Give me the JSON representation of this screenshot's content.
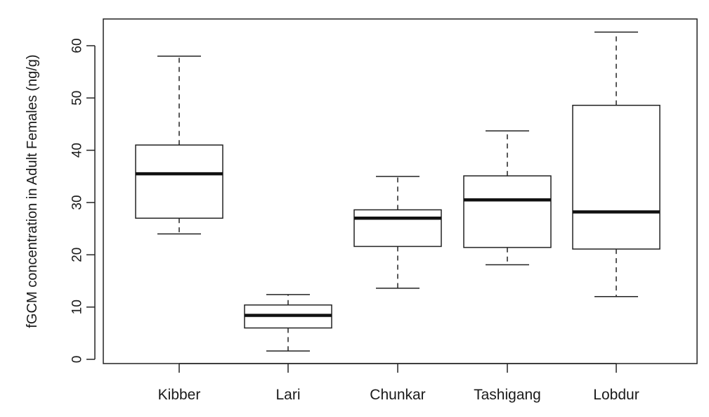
{
  "chart_data": {
    "type": "boxplot",
    "ylabel": "fGCM concentration in Adult Females (ng/g)",
    "xlabel": "",
    "ylim": [
      0,
      65
    ],
    "yticks": [
      0,
      10,
      20,
      30,
      40,
      50,
      60
    ],
    "categories": [
      "Kibber",
      "Lari",
      "Chunkar",
      "Tashigang",
      "Lobdur"
    ],
    "boxes": [
      {
        "category": "Kibber",
        "whisker_low": 24.0,
        "q1": 27.0,
        "median": 35.5,
        "q3": 41.0,
        "whisker_high": 58.0
      },
      {
        "category": "Lari",
        "whisker_low": 1.6,
        "q1": 6.0,
        "median": 8.4,
        "q3": 10.4,
        "whisker_high": 12.4
      },
      {
        "category": "Chunkar",
        "whisker_low": 13.6,
        "q1": 21.6,
        "median": 27.0,
        "q3": 28.6,
        "whisker_high": 35.0
      },
      {
        "category": "Tashigang",
        "whisker_low": 18.1,
        "q1": 21.4,
        "median": 30.5,
        "q3": 35.1,
        "whisker_high": 43.7
      },
      {
        "category": "Lobdur",
        "whisker_low": 12.0,
        "q1": 21.1,
        "median": 28.2,
        "q3": 48.6,
        "whisker_high": 62.6
      }
    ],
    "grid": false,
    "legend": "none"
  }
}
